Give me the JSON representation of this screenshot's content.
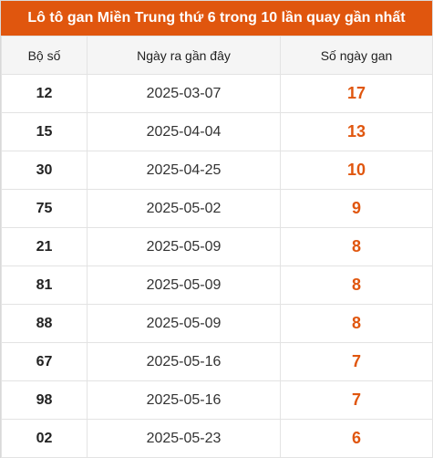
{
  "title": "Lô tô gan Miền Trung thứ 6 trong 10 lần quay gần nhất",
  "colors": {
    "header_bg": "#e0560e",
    "gan_value": "#e0560e"
  },
  "columns": [
    "Bộ số",
    "Ngày ra gần đây",
    "Số ngày gan"
  ],
  "rows": [
    {
      "number": "12",
      "date": "2025-03-07",
      "days": "17"
    },
    {
      "number": "15",
      "date": "2025-04-04",
      "days": "13"
    },
    {
      "number": "30",
      "date": "2025-04-25",
      "days": "10"
    },
    {
      "number": "75",
      "date": "2025-05-02",
      "days": "9"
    },
    {
      "number": "21",
      "date": "2025-05-09",
      "days": "8"
    },
    {
      "number": "81",
      "date": "2025-05-09",
      "days": "8"
    },
    {
      "number": "88",
      "date": "2025-05-09",
      "days": "8"
    },
    {
      "number": "67",
      "date": "2025-05-16",
      "days": "7"
    },
    {
      "number": "98",
      "date": "2025-05-16",
      "days": "7"
    },
    {
      "number": "02",
      "date": "2025-05-23",
      "days": "6"
    }
  ]
}
